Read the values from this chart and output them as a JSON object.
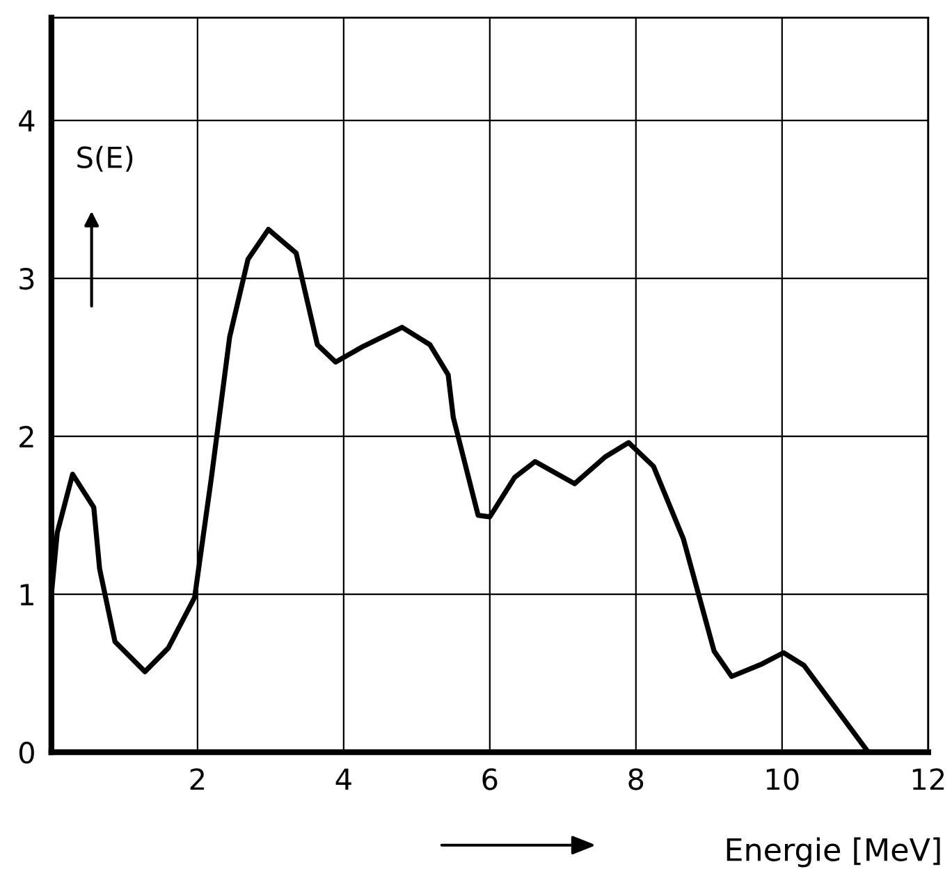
{
  "chart_data": {
    "type": "line",
    "xlabel": "Energie [MeV]",
    "ylabel": "S(E)",
    "xlim": [
      0,
      12
    ],
    "ylim": [
      0,
      4.65
    ],
    "xticks": [
      2,
      4,
      6,
      8,
      10,
      12
    ],
    "yticks": [
      0,
      1,
      2,
      3,
      4
    ],
    "grid": true,
    "series": [
      {
        "color": "#000000",
        "x": [
          0,
          0.08,
          0.29,
          0.58,
          0.66,
          0.87,
          1.28,
          1.6,
          1.96,
          2.19,
          2.44,
          2.69,
          2.97,
          3.35,
          3.64,
          3.89,
          4.27,
          4.8,
          5.18,
          5.43,
          5.5,
          5.84,
          6.0,
          6.34,
          6.62,
          7.16,
          7.58,
          7.9,
          8.24,
          8.65,
          9.07,
          9.31,
          9.73,
          10.02,
          10.3,
          11.18
        ],
        "values": [
          1.0,
          1.39,
          1.76,
          1.55,
          1.16,
          0.7,
          0.51,
          0.66,
          0.98,
          1.74,
          2.63,
          3.12,
          3.31,
          3.16,
          2.58,
          2.47,
          2.57,
          2.69,
          2.58,
          2.39,
          2.12,
          1.5,
          1.49,
          1.74,
          1.84,
          1.7,
          1.87,
          1.96,
          1.81,
          1.35,
          0.64,
          0.48,
          0.56,
          0.63,
          0.55,
          0.0
        ]
      }
    ]
  }
}
